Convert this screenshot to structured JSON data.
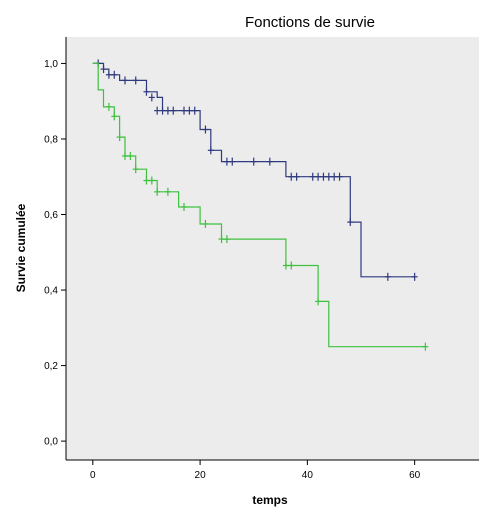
{
  "chart_data": {
    "type": "line",
    "title": "Fonctions de survie",
    "xlabel": "temps",
    "ylabel": "Survie cumulée",
    "xlim": [
      -5,
      72
    ],
    "ylim": [
      -0.05,
      1.07
    ],
    "xticks": [
      0,
      20,
      40,
      60
    ],
    "xtick_labels": [
      "0",
      "20",
      "40",
      "60"
    ],
    "yticks": [
      0,
      0.2,
      0.4,
      0.6,
      0.8,
      1.0
    ],
    "ytick_labels": [
      "0,0",
      "0,2",
      "0,4",
      "0,6",
      "0,8",
      "1,0"
    ],
    "grid": false,
    "legend": "none",
    "colors": {
      "background": "#ececec",
      "series_1": "#2f3a7e",
      "series_2": "#3ec13e"
    },
    "series": [
      {
        "steps": [
          [
            0,
            1.0
          ],
          [
            2,
            0.985
          ],
          [
            3,
            0.97
          ],
          [
            5,
            0.955
          ],
          [
            10,
            0.925
          ],
          [
            12,
            0.91
          ],
          [
            13,
            0.875
          ],
          [
            20,
            0.825
          ],
          [
            22,
            0.77
          ],
          [
            24,
            0.74
          ],
          [
            36,
            0.7
          ],
          [
            48,
            0.58
          ],
          [
            50,
            0.435
          ],
          [
            60,
            0.435
          ]
        ],
        "censored": [
          [
            1,
            1.0
          ],
          [
            2,
            0.985
          ],
          [
            3,
            0.97
          ],
          [
            4,
            0.97
          ],
          [
            6,
            0.955
          ],
          [
            8,
            0.955
          ],
          [
            10,
            0.925
          ],
          [
            11,
            0.91
          ],
          [
            12,
            0.875
          ],
          [
            13,
            0.875
          ],
          [
            14,
            0.875
          ],
          [
            15,
            0.875
          ],
          [
            17,
            0.875
          ],
          [
            18,
            0.875
          ],
          [
            19,
            0.875
          ],
          [
            21,
            0.825
          ],
          [
            22,
            0.77
          ],
          [
            25,
            0.74
          ],
          [
            26,
            0.74
          ],
          [
            30,
            0.74
          ],
          [
            33,
            0.74
          ],
          [
            37,
            0.7
          ],
          [
            38,
            0.7
          ],
          [
            41,
            0.7
          ],
          [
            42,
            0.7
          ],
          [
            43,
            0.7
          ],
          [
            44,
            0.7
          ],
          [
            45,
            0.7
          ],
          [
            46,
            0.7
          ],
          [
            48,
            0.58
          ],
          [
            55,
            0.435
          ],
          [
            60,
            0.435
          ]
        ]
      },
      {
        "steps": [
          [
            0,
            1.0
          ],
          [
            1,
            0.93
          ],
          [
            2,
            0.885
          ],
          [
            4,
            0.86
          ],
          [
            5,
            0.805
          ],
          [
            6,
            0.755
          ],
          [
            8,
            0.72
          ],
          [
            10,
            0.69
          ],
          [
            12,
            0.66
          ],
          [
            16,
            0.62
          ],
          [
            20,
            0.575
          ],
          [
            24,
            0.535
          ],
          [
            36,
            0.465
          ],
          [
            42,
            0.37
          ],
          [
            44,
            0.25
          ],
          [
            62,
            0.25
          ]
        ],
        "censored": [
          [
            3,
            0.885
          ],
          [
            4,
            0.86
          ],
          [
            5,
            0.805
          ],
          [
            6,
            0.755
          ],
          [
            7,
            0.755
          ],
          [
            8,
            0.72
          ],
          [
            10,
            0.69
          ],
          [
            11,
            0.69
          ],
          [
            12,
            0.66
          ],
          [
            14,
            0.66
          ],
          [
            17,
            0.62
          ],
          [
            21,
            0.575
          ],
          [
            24,
            0.535
          ],
          [
            25,
            0.535
          ],
          [
            36,
            0.465
          ],
          [
            37,
            0.465
          ],
          [
            42,
            0.37
          ],
          [
            62,
            0.25
          ]
        ]
      }
    ]
  }
}
